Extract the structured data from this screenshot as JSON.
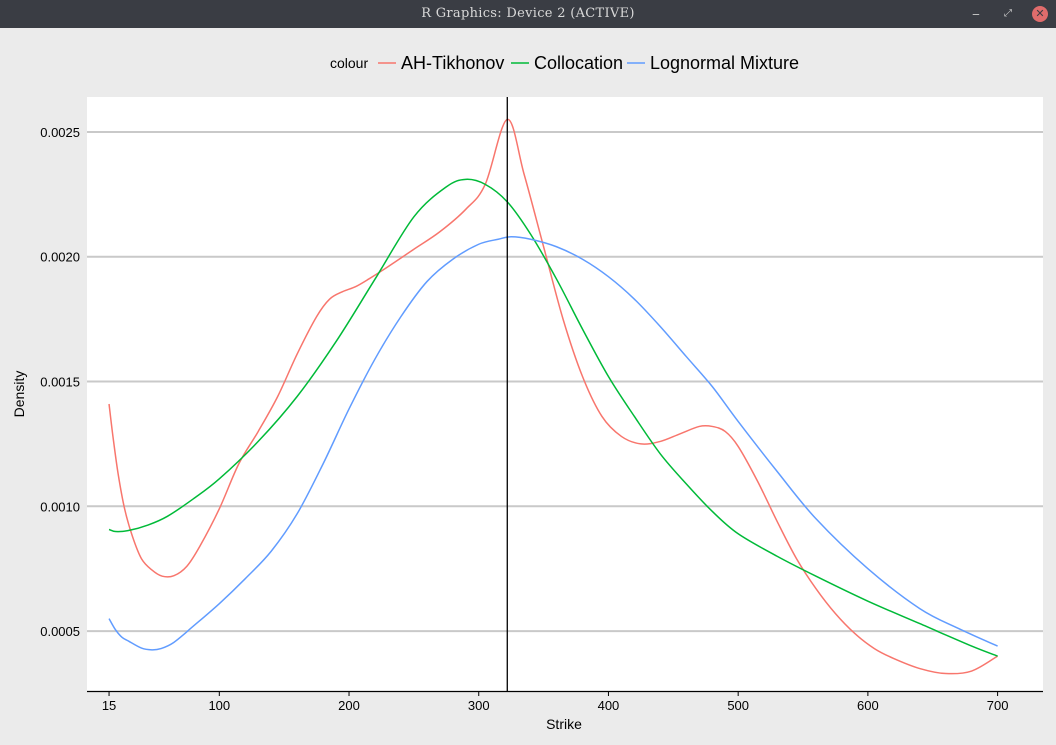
{
  "window": {
    "title": "R Graphics: Device 2 (ACTIVE)",
    "buttons": {
      "minimize": "‒",
      "maximize": "⤢",
      "close": "✕"
    }
  },
  "chart_data": {
    "type": "line",
    "title": "",
    "xlabel": "Strike",
    "ylabel": "Density",
    "xlim": [
      -2,
      735
    ],
    "ylim": [
      0.00026,
      0.00264
    ],
    "x_ticks": [
      15,
      100,
      200,
      300,
      400,
      500,
      600,
      700
    ],
    "y_ticks": [
      0.0005,
      0.001,
      0.0015,
      0.002,
      0.0025
    ],
    "y_tick_labels": [
      "0.0005",
      "0.0010",
      "0.0015",
      "0.0020",
      "0.0025"
    ],
    "grid": "horizontal",
    "vline": 322,
    "legend": {
      "title": "colour",
      "placement": "top"
    },
    "series": [
      {
        "name": "AH-Tikhonov",
        "color": "#F8766D",
        "x": [
          15,
          18,
          22,
          27,
          33,
          40,
          48,
          56,
          65,
          75,
          85,
          100,
          115,
          130,
          145,
          160,
          175,
          185,
          195,
          205,
          215,
          230,
          250,
          270,
          290,
          305,
          322,
          335,
          350,
          365,
          380,
          395,
          410,
          425,
          440,
          455,
          470,
          480,
          490,
          500,
          515,
          530,
          545,
          560,
          575,
          590,
          605,
          620,
          640,
          660,
          680,
          700
        ],
        "y": [
          0.00141,
          0.00128,
          0.00113,
          0.00099,
          0.00088,
          0.00079,
          0.000745,
          0.00072,
          0.000722,
          0.00076,
          0.00084,
          0.00099,
          0.00117,
          0.0013,
          0.00144,
          0.00161,
          0.00176,
          0.00183,
          0.00186,
          0.00188,
          0.00191,
          0.00196,
          0.00203,
          0.0021,
          0.00219,
          0.00229,
          0.00255,
          0.00233,
          0.00204,
          0.00175,
          0.00152,
          0.00136,
          0.00128,
          0.00125,
          0.00126,
          0.00129,
          0.00132,
          0.00132,
          0.0013,
          0.00124,
          0.0011,
          0.00094,
          0.00079,
          0.00067,
          0.00057,
          0.00049,
          0.00043,
          0.00039,
          0.00035,
          0.00033,
          0.00034,
          0.0004
        ]
      },
      {
        "name": "Collocation",
        "color": "#00BA38",
        "x": [
          15,
          20,
          30,
          45,
          60,
          80,
          100,
          130,
          160,
          190,
          220,
          250,
          275,
          290,
          305,
          322,
          340,
          360,
          380,
          400,
          420,
          440,
          460,
          480,
          500,
          530,
          560,
          600,
          640,
          680,
          700
        ],
        "y": [
          0.000907,
          0.000899,
          0.000903,
          0.000925,
          0.00096,
          0.00103,
          0.00111,
          0.00126,
          0.00144,
          0.00166,
          0.00191,
          0.00216,
          0.00228,
          0.00231,
          0.00229,
          0.00222,
          0.00209,
          0.00191,
          0.00171,
          0.00152,
          0.00136,
          0.00121,
          0.00109,
          0.00098,
          0.00089,
          0.0008,
          0.00072,
          0.00062,
          0.00053,
          0.00044,
          0.0004
        ]
      },
      {
        "name": "Lognormal Mixture",
        "color": "#619CFF",
        "x": [
          15,
          20,
          25,
          30,
          40,
          48,
          55,
          65,
          80,
          100,
          120,
          140,
          160,
          180,
          200,
          220,
          240,
          260,
          280,
          300,
          315,
          325,
          340,
          360,
          380,
          400,
          420,
          440,
          460,
          480,
          500,
          530,
          560,
          600,
          640,
          670,
          700
        ],
        "y": [
          0.00055,
          0.000505,
          0.000475,
          0.00046,
          0.000432,
          0.000425,
          0.00043,
          0.000455,
          0.00052,
          0.00061,
          0.00071,
          0.00082,
          0.00097,
          0.00117,
          0.00139,
          0.00159,
          0.00176,
          0.0019,
          0.00199,
          0.00205,
          0.00207,
          0.00208,
          0.00207,
          0.00204,
          0.00199,
          0.00192,
          0.00183,
          0.00172,
          0.0016,
          0.00148,
          0.00134,
          0.00114,
          0.00095,
          0.00075,
          0.00059,
          0.00051,
          0.00044
        ]
      }
    ]
  }
}
